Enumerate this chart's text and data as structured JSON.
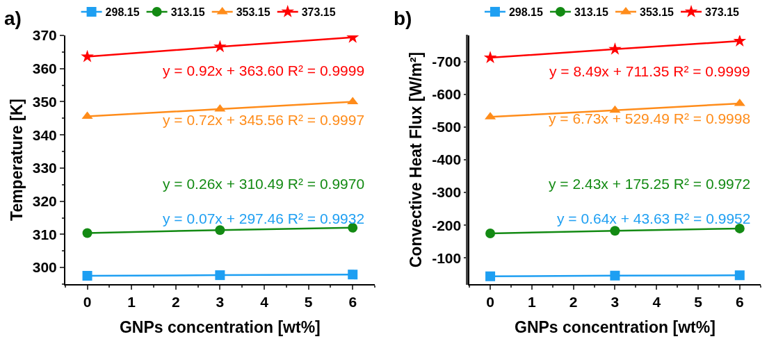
{
  "chart_data": [
    {
      "type": "line",
      "title": "a)",
      "xlabel": "GNPs concentration [wt%]",
      "ylabel": "Temperature [K]",
      "x": [
        0,
        3,
        6
      ],
      "xlim": [
        -0.5,
        6.5
      ],
      "xticks": [
        0,
        1,
        2,
        3,
        4,
        5,
        6
      ],
      "ylim": [
        295,
        370
      ],
      "yticks": [
        300,
        310,
        320,
        330,
        340,
        350,
        360,
        370
      ],
      "legend": "top",
      "series": [
        {
          "name": "298.15",
          "color": "#1e9ff2",
          "marker": "square",
          "values": [
            297.5,
            297.7,
            297.9
          ]
        },
        {
          "name": "313.15",
          "color": "#138a13",
          "marker": "circle",
          "values": [
            310.4,
            311.3,
            312.0
          ]
        },
        {
          "name": "353.15",
          "color": "#ff8c1a",
          "marker": "triangle",
          "values": [
            345.6,
            347.8,
            350.0
          ]
        },
        {
          "name": "373.15",
          "color": "#ff0000",
          "marker": "star",
          "values": [
            363.6,
            366.6,
            369.4
          ]
        }
      ],
      "annotations": [
        "y = 0.07x + 297.46 R² = 0.9932",
        "y = 0.26x + 310.49 R² = 0.9970",
        "y = 0.72x + 345.56 R² = 0.9997",
        "y = 0.92x + 363.60 R² = 0.9999"
      ]
    },
    {
      "type": "line",
      "title": "b)",
      "xlabel": "GNPs concentration [wt%]",
      "ylabel": "Convective Heat Flux [W/m²]",
      "x": [
        0,
        3,
        6
      ],
      "xlim": [
        -0.5,
        6.5
      ],
      "xticks": [
        0,
        1,
        2,
        3,
        4,
        5,
        6
      ],
      "ylim": [
        -20,
        -780
      ],
      "yticks": [
        -100,
        -200,
        -300,
        -400,
        -500,
        -600,
        -700
      ],
      "legend": "top",
      "series": [
        {
          "name": "298.15",
          "color": "#1e9ff2",
          "marker": "square",
          "values": [
            -44,
            -46,
            -47
          ]
        },
        {
          "name": "313.15",
          "color": "#138a13",
          "marker": "circle",
          "values": [
            -175,
            -183,
            -190
          ]
        },
        {
          "name": "353.15",
          "color": "#ff8c1a",
          "marker": "triangle",
          "values": [
            -531,
            -551,
            -572
          ]
        },
        {
          "name": "373.15",
          "color": "#ff0000",
          "marker": "star",
          "values": [
            -712,
            -738,
            -763
          ]
        }
      ],
      "annotations": [
        "y = 0.64x + 43.63 R² = 0.9952",
        "y = 2.43x + 175.25 R² = 0.9972",
        "y = 6.73x + 529.49 R² = 0.9998",
        "y = 8.49x + 711.35 R² = 0.9999"
      ]
    }
  ]
}
